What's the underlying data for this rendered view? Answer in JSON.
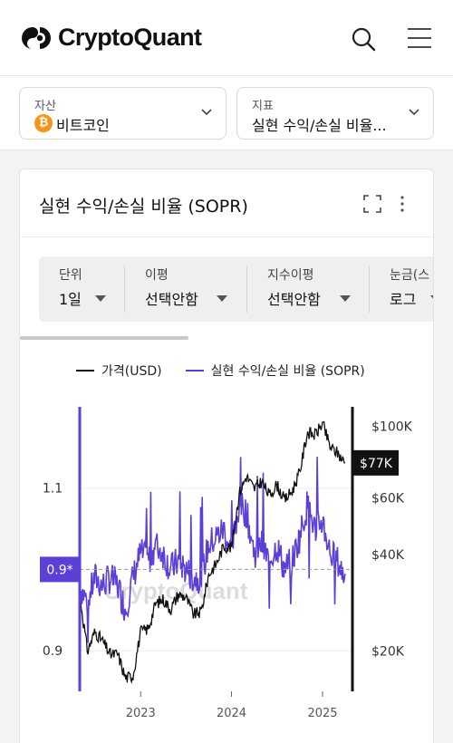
{
  "app": {
    "brand": "CryptoQuant",
    "icons": {
      "search": "search-icon",
      "menu": "hamburger-menu-icon"
    }
  },
  "selectors": {
    "asset": {
      "label": "자산",
      "value": "비트코인",
      "icon": "bitcoin-icon"
    },
    "metric": {
      "label": "지표",
      "value": "실현 수익/손실 비율..."
    }
  },
  "card": {
    "title": "실현 수익/손실 비율 (SOPR)",
    "icons": {
      "fullscreen": "fullscreen-icon",
      "more": "more-vertical-icon"
    }
  },
  "controls": [
    {
      "label": "단위",
      "value": "1일"
    },
    {
      "label": "이평",
      "value": "선택안함"
    },
    {
      "label": "지수이평",
      "value": "선택안함"
    },
    {
      "label": "눈금(스",
      "value": "로그"
    }
  ],
  "chart_data": {
    "type": "line",
    "watermark": "CryptoQuant",
    "legend": [
      {
        "name": "가격(USD)",
        "color": "#111111"
      },
      {
        "name": "실현 수익/손실 비율 (SOPR)",
        "color": "#5b3fd6"
      }
    ],
    "x_ticks": [
      "2023",
      "2024",
      "2025"
    ],
    "y_left_ticks": [
      "1.1",
      "0.9"
    ],
    "y_right_ticks": [
      "$100K",
      "$60K",
      "$40K",
      "$20K"
    ],
    "current_sopr_label": "0.9*",
    "current_price_label": "$77K",
    "price_series": {
      "name": "가격(USD)",
      "x": [
        "2022-05",
        "2022-06",
        "2022-07",
        "2022-08",
        "2022-09",
        "2022-10",
        "2022-11",
        "2022-12",
        "2023-01",
        "2023-02",
        "2023-03",
        "2023-04",
        "2023-05",
        "2023-06",
        "2023-07",
        "2023-08",
        "2023-09",
        "2023-10",
        "2023-11",
        "2023-12",
        "2024-01",
        "2024-02",
        "2024-03",
        "2024-04",
        "2024-05",
        "2024-06",
        "2024-07",
        "2024-08",
        "2024-09",
        "2024-10",
        "2024-11",
        "2024-12",
        "2025-01",
        "2025-02",
        "2025-03",
        "2025-04"
      ],
      "values": [
        30000,
        20000,
        23000,
        21500,
        19500,
        19600,
        16500,
        16800,
        23000,
        23500,
        28000,
        29000,
        27000,
        30000,
        29500,
        26000,
        26500,
        34500,
        37500,
        42500,
        42000,
        62000,
        70000,
        64000,
        67500,
        61000,
        66000,
        59000,
        63000,
        72000,
        96000,
        94000,
        102000,
        86000,
        83000,
        77000
      ]
    },
    "sopr_series": {
      "name": "실현 수익/손실 비율 (SOPR)",
      "range": [
        0.85,
        1.2
      ],
      "x": [
        "2022-05",
        "2022-06",
        "2022-07",
        "2022-08",
        "2022-09",
        "2022-10",
        "2022-11",
        "2022-12",
        "2023-01",
        "2023-02",
        "2023-03",
        "2023-04",
        "2023-05",
        "2023-06",
        "2023-07",
        "2023-08",
        "2023-09",
        "2023-10",
        "2023-11",
        "2023-12",
        "2024-01",
        "2024-02",
        "2024-03",
        "2024-04",
        "2024-05",
        "2024-06",
        "2024-07",
        "2024-08",
        "2024-09",
        "2024-10",
        "2024-11",
        "2024-12",
        "2025-01",
        "2025-02",
        "2025-03",
        "2025-04"
      ],
      "values": [
        0.98,
        0.96,
        0.99,
        0.98,
        0.99,
        0.98,
        0.95,
        0.99,
        1.02,
        1.01,
        1.03,
        1.02,
        1.0,
        1.01,
        1.0,
        0.99,
        0.99,
        1.03,
        1.04,
        1.05,
        1.02,
        1.08,
        1.07,
        1.02,
        1.03,
        1.01,
        1.03,
        1.0,
        1.01,
        1.04,
        1.08,
        1.05,
        1.06,
        1.02,
        1.01,
        0.99
      ]
    }
  }
}
